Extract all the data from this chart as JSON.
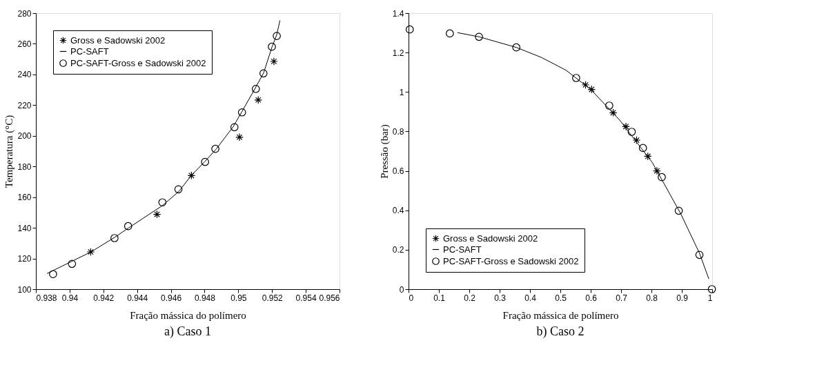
{
  "chart_data": [
    {
      "type": "scatter",
      "title": "a) Caso 1",
      "xlabel": "Fração mássica do polímero",
      "ylabel": "Temperatura (°C)",
      "xlim": [
        0.938,
        0.956
      ],
      "xticks": [
        0.938,
        0.94,
        0.942,
        0.944,
        0.946,
        0.948,
        0.95,
        0.952,
        0.954,
        0.956
      ],
      "ylim": [
        100,
        280
      ],
      "yticks": [
        100,
        120,
        140,
        160,
        180,
        200,
        220,
        240,
        260,
        280
      ],
      "grid": false,
      "legend": "top left",
      "series": [
        {
          "name": "Gross e Sadowski 2002",
          "type": "scatter",
          "marker": "cross",
          "color": "#000000",
          "x": [
            0.94125,
            0.94518,
            0.94722,
            0.95007,
            0.95118,
            0.95211
          ],
          "values": [
            124.3,
            148.8,
            174.1,
            199.1,
            223.4,
            248.5
          ]
        },
        {
          "name": "PC-SAFT",
          "type": "line",
          "marker": "none",
          "line_style": "solid",
          "color": "#000000",
          "x": [
            0.93866,
            0.9401,
            0.9413,
            0.9427,
            0.9435,
            0.9455,
            0.9465,
            0.9472,
            0.948,
            0.9487,
            0.9497,
            0.9502,
            0.951,
            0.9515,
            0.952,
            0.95228,
            0.95247
          ],
          "values": [
            110.2,
            118,
            124.5,
            134,
            140,
            154.5,
            164,
            174,
            183,
            191.5,
            206,
            215.5,
            231,
            241,
            258,
            266,
            275.3
          ]
        },
        {
          "name": "PC-SAFT-Gross e Sadowski 2002",
          "type": "scatter",
          "marker": "circle",
          "color": "#000000",
          "x": [
            0.93902,
            0.94014,
            0.94266,
            0.94347,
            0.9455,
            0.94645,
            0.94803,
            0.94864,
            0.94977,
            0.95022,
            0.95104,
            0.95149,
            0.95199,
            0.95228
          ],
          "values": [
            109.8,
            116.5,
            133.3,
            141.1,
            156.6,
            165.1,
            183.0,
            191.5,
            205.6,
            215.3,
            230.6,
            240.7,
            258.1,
            265.1
          ]
        }
      ]
    },
    {
      "type": "scatter",
      "title": "b) Caso 2",
      "xlabel": "Fração mássica de polímero",
      "ylabel": "Pressão (bar)",
      "xlim": [
        0,
        1
      ],
      "xticks": [
        0,
        0.1,
        0.2,
        0.3,
        0.4,
        0.5,
        0.6,
        0.7,
        0.8,
        0.9,
        1
      ],
      "ylim": [
        0,
        1.4
      ],
      "yticks": [
        0,
        0.2,
        0.4,
        0.6,
        0.8,
        1,
        1.2,
        1.4
      ],
      "grid": false,
      "legend": "bottom left",
      "series": [
        {
          "name": "Gross e Sadowski 2002",
          "type": "scatter",
          "marker": "cross",
          "color": "#000000",
          "x": [
            0.583,
            0.603,
            0.674,
            0.716,
            0.751,
            0.788,
            0.818
          ],
          "values": [
            1.036,
            1.013,
            0.895,
            0.825,
            0.756,
            0.674,
            0.6
          ]
        },
        {
          "name": "PC-SAFT",
          "type": "line",
          "marker": "none",
          "line_style": "solid",
          "color": "#000000",
          "x": [
            0.161,
            0.232,
            0.355,
            0.438,
            0.519,
            0.6,
            0.695,
            0.803,
            0.897,
            0.958,
            0.989
          ],
          "values": [
            1.301,
            1.28,
            1.226,
            1.175,
            1.11,
            1.013,
            0.858,
            0.642,
            0.381,
            0.183,
            0.052
          ]
        },
        {
          "name": "PC-SAFT-Gross e Sadowski 2002",
          "type": "scatter",
          "marker": "circle",
          "color": "#000000",
          "x": [
            0.004,
            0.136,
            0.232,
            0.355,
            0.552,
            0.661,
            0.735,
            0.772,
            0.834,
            0.89,
            0.958,
            0.999
          ],
          "values": [
            1.317,
            1.297,
            1.28,
            1.226,
            1.071,
            0.931,
            0.798,
            0.716,
            0.568,
            0.398,
            0.174,
            0
          ]
        }
      ]
    }
  ]
}
